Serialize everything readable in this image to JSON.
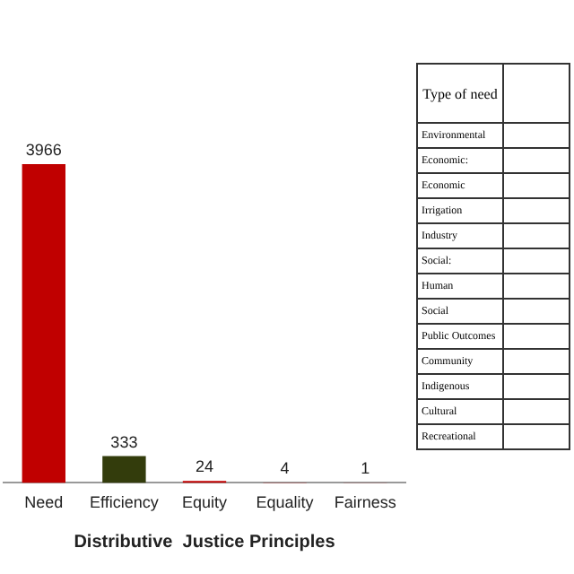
{
  "chart_data": {
    "type": "bar",
    "xlabel": "Distributive  Justice Principles",
    "categories": [
      "Need",
      "Efficiency",
      "Equity",
      "Equality",
      "Fairness"
    ],
    "values": [
      3966,
      333,
      24,
      4,
      1
    ],
    "colors": [
      "#c00000",
      "#333c0c",
      "#c00000",
      "#c00000",
      "#c00000"
    ],
    "data_labels": true,
    "grid": false,
    "legend": false,
    "annotations": [
      "Type of need",
      "Environmental",
      "Economic:",
      "Economic",
      "Irrigation",
      "Industry",
      "Social:",
      "Human",
      "Social",
      "Public Outcomes",
      "Community",
      "Indigenous",
      "Cultural",
      "Recreational"
    ]
  }
}
